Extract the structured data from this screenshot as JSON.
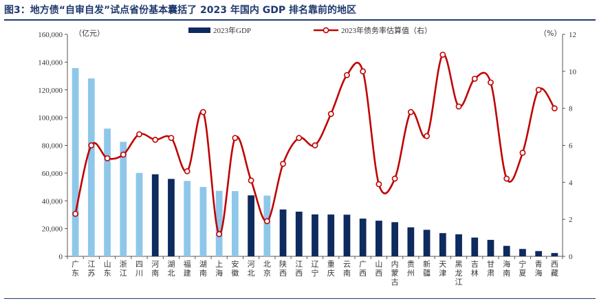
{
  "title": "图3：地方债“自审自发”试点省份基本囊括了 2023 年国内 GDP 排名靠前的地区",
  "colors": {
    "title": "#1f3a6e",
    "pilot_bar": "#8ec7ea",
    "other_bar": "#0e2a5e",
    "line": "#c00000"
  },
  "chart_data": {
    "type": "bar+line",
    "categories": [
      "广东",
      "江苏",
      "山东",
      "浙江",
      "四川",
      "河南",
      "湖北",
      "福建",
      "湖南",
      "上海",
      "安徽",
      "河北",
      "北京",
      "陕西",
      "江西",
      "辽宁",
      "重庆",
      "云南",
      "广西",
      "山西",
      "内蒙古",
      "贵州",
      "新疆",
      "天津",
      "黑龙江",
      "吉林",
      "甘肃",
      "海南",
      "宁夏",
      "青海",
      "西藏"
    ],
    "series": [
      {
        "name": "2023年GDP",
        "axis": "left",
        "type": "bar",
        "values": [
          135673,
          128222,
          92069,
          82553,
          60133,
          59132,
          55804,
          54355,
          50013,
          47219,
          47051,
          43944,
          43761,
          33786,
          32200,
          30209,
          30146,
          30021,
          27202,
          25698,
          24627,
          20913,
          19126,
          16737,
          15884,
          13531,
          11864,
          7551,
          5315,
          3799,
          2393
        ],
        "highlight": [
          true,
          true,
          true,
          true,
          true,
          false,
          false,
          true,
          true,
          true,
          true,
          false,
          true,
          false,
          false,
          false,
          false,
          false,
          false,
          false,
          false,
          false,
          false,
          false,
          false,
          false,
          false,
          false,
          false,
          false,
          false
        ]
      },
      {
        "name": "2023年债务率估算值（右）",
        "axis": "right",
        "type": "line",
        "values": [
          2.3,
          6.0,
          5.3,
          5.5,
          6.6,
          6.3,
          6.4,
          4.6,
          7.8,
          1.2,
          6.4,
          4.1,
          1.9,
          5.0,
          6.4,
          6.0,
          7.7,
          9.8,
          10.0,
          3.9,
          4.2,
          7.8,
          6.5,
          10.9,
          8.1,
          9.6,
          9.4,
          4.2,
          5.6,
          9.0,
          8.0
        ]
      }
    ],
    "left_axis": {
      "unit": "（亿元）",
      "min": 0,
      "max": 160000,
      "step": 20000,
      "ticks": [
        "0",
        "20,000",
        "40,000",
        "60,000",
        "80,000",
        "100,000",
        "120,000",
        "140,000",
        "160,000"
      ]
    },
    "right_axis": {
      "unit": "（%）",
      "min": 0,
      "max": 12,
      "step": 2,
      "ticks": [
        "0",
        "2",
        "4",
        "6",
        "8",
        "10",
        "12"
      ]
    },
    "legend": {
      "placement": "top-center"
    },
    "grid": false
  }
}
